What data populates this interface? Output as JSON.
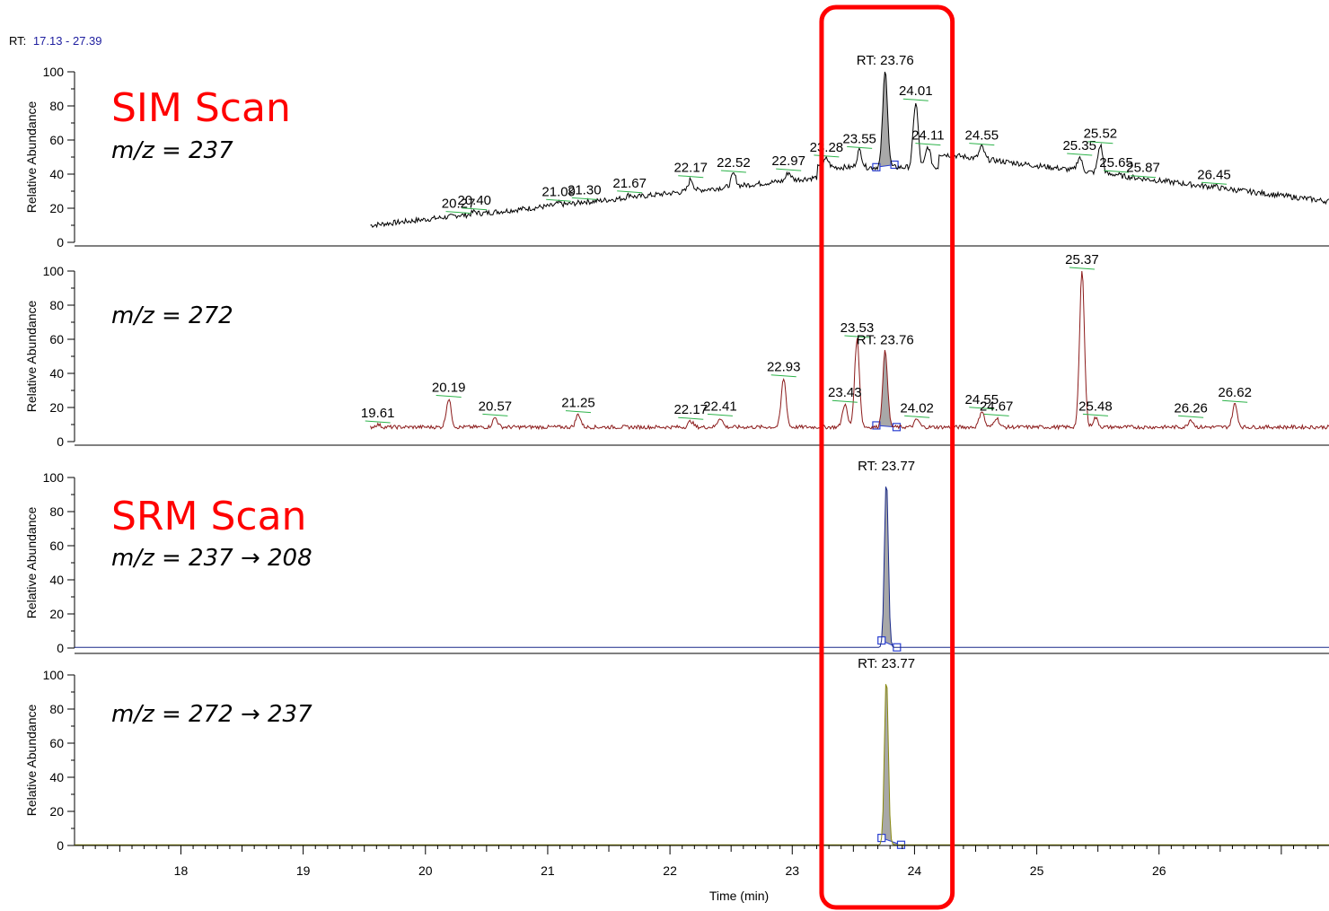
{
  "header": {
    "rt_prefix": "RT:",
    "rt_range": "17.13 - 27.39",
    "rt_range_color": "#2020a0"
  },
  "colors": {
    "highlight": "#ff0000",
    "peak_fill": "#a8a8a8",
    "marker": "#2a3fd0",
    "baseline": "#2db34a"
  },
  "chart_data": [
    {
      "type": "line",
      "ylabel": "Relative Abundance",
      "annotation_main": "SIM Scan",
      "annotation_sub": "m/z = 237",
      "line_color": "#000000",
      "series_bounds": {
        "x": [
          19.55,
          27.39
        ]
      },
      "yticks": [
        0,
        20,
        40,
        60,
        80,
        100
      ],
      "ylim": [
        0,
        100
      ],
      "rt_peak": {
        "label": "RT: 23.76",
        "x": 23.76,
        "y": 100
      },
      "peaks": [
        {
          "label": "20.27",
          "x": 20.27,
          "y": 16
        },
        {
          "label": "20.40",
          "x": 20.4,
          "y": 18
        },
        {
          "label": "21.09",
          "x": 21.09,
          "y": 23
        },
        {
          "label": "21.30",
          "x": 21.3,
          "y": 24
        },
        {
          "label": "21.67",
          "x": 21.67,
          "y": 28
        },
        {
          "label": "22.17",
          "x": 22.17,
          "y": 37
        },
        {
          "label": "22.52",
          "x": 22.52,
          "y": 40
        },
        {
          "label": "22.97",
          "x": 22.97,
          "y": 41
        },
        {
          "label": "23.28",
          "x": 23.28,
          "y": 49
        },
        {
          "label": "23.55",
          "x": 23.55,
          "y": 54
        },
        {
          "label": "24.01",
          "x": 24.01,
          "y": 82
        },
        {
          "label": "24.11",
          "x": 24.11,
          "y": 56
        },
        {
          "label": "24.55",
          "x": 24.55,
          "y": 56
        },
        {
          "label": "25.35",
          "x": 25.35,
          "y": 50
        },
        {
          "label": "25.52",
          "x": 25.52,
          "y": 57
        },
        {
          "label": "25.65",
          "x": 25.65,
          "y": 40
        },
        {
          "label": "25.87",
          "x": 25.87,
          "y": 37
        },
        {
          "label": "26.45",
          "x": 26.45,
          "y": 33
        }
      ],
      "shaded": [
        23.68,
        23.84
      ]
    },
    {
      "type": "line",
      "ylabel": "Relative Abundance",
      "annotation_main": "",
      "annotation_sub": "m/z = 272",
      "line_color": "#8b1a1a",
      "series_bounds": {
        "x": [
          19.55,
          27.39
        ]
      },
      "yticks": [
        0,
        20,
        40,
        60,
        80,
        100
      ],
      "ylim": [
        0,
        100
      ],
      "rt_peak": {
        "label": "RT: 23.76",
        "x": 23.76,
        "y": 53
      },
      "peaks": [
        {
          "label": "19.61",
          "x": 19.61,
          "y": 10
        },
        {
          "label": "20.19",
          "x": 20.19,
          "y": 25
        },
        {
          "label": "20.57",
          "x": 20.57,
          "y": 14
        },
        {
          "label": "21.25",
          "x": 21.25,
          "y": 16
        },
        {
          "label": "22.17",
          "x": 22.17,
          "y": 12
        },
        {
          "label": "22.41",
          "x": 22.41,
          "y": 14
        },
        {
          "label": "22.93",
          "x": 22.93,
          "y": 37
        },
        {
          "label": "23.43",
          "x": 23.43,
          "y": 22
        },
        {
          "label": "23.53",
          "x": 23.53,
          "y": 60
        },
        {
          "label": "24.02",
          "x": 24.02,
          "y": 13
        },
        {
          "label": "24.55",
          "x": 24.55,
          "y": 18
        },
        {
          "label": "24.67",
          "x": 24.67,
          "y": 14
        },
        {
          "label": "25.37",
          "x": 25.37,
          "y": 100
        },
        {
          "label": "25.48",
          "x": 25.48,
          "y": 14
        },
        {
          "label": "26.26",
          "x": 26.26,
          "y": 13
        },
        {
          "label": "26.62",
          "x": 26.62,
          "y": 22
        }
      ],
      "shaded": [
        23.68,
        23.86
      ]
    },
    {
      "type": "line",
      "ylabel": "Relative Abundance",
      "annotation_main": "SRM Scan",
      "annotation_sub": "m/z = 237 → 208",
      "line_color": "#1a2a8a",
      "series_bounds": {
        "x": [
          17.13,
          27.39
        ]
      },
      "yticks": [
        0,
        20,
        40,
        60,
        80,
        100
      ],
      "ylim": [
        0,
        100
      ],
      "rt_peak": {
        "label": "RT: 23.77",
        "x": 23.77,
        "y": 100
      },
      "peaks": [],
      "shaded": [
        23.72,
        23.86
      ]
    },
    {
      "type": "line",
      "ylabel": "Relative Abundance",
      "annotation_main": "",
      "annotation_sub": "m/z = 272 → 237",
      "line_color": "#8a8a10",
      "series_bounds": {
        "x": [
          17.13,
          27.39
        ]
      },
      "yticks": [
        0,
        20,
        40,
        60,
        80,
        100
      ],
      "ylim": [
        0,
        100
      ],
      "rt_peak": {
        "label": "RT: 23.77",
        "x": 23.77,
        "y": 100
      },
      "peaks": [],
      "shaded": [
        23.72,
        23.9
      ]
    }
  ],
  "x_axis": {
    "label": "Time (min)",
    "xlim": [
      17.13,
      27.39
    ],
    "ticks": [
      18,
      19,
      20,
      21,
      22,
      23,
      24,
      25,
      26
    ]
  },
  "highlight_box": {
    "x_range": [
      23.24,
      24.31
    ]
  }
}
